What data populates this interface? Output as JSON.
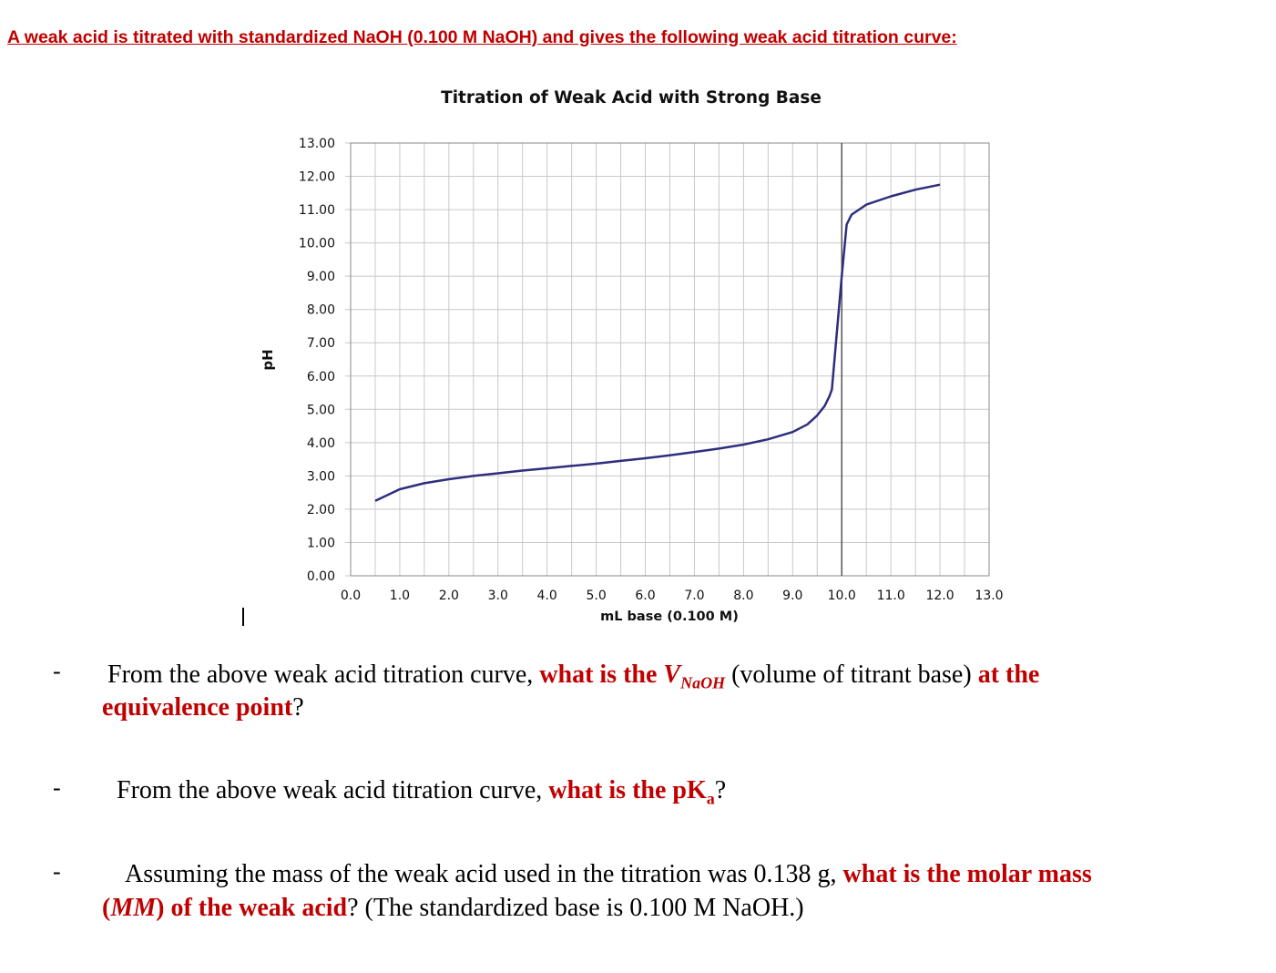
{
  "heading": "A weak acid is titrated with standardized NaOH (0.100 M NaOH) and gives the following weak acid titration curve:",
  "colors": {
    "curve": "#2e2e7e",
    "grid": "#c8c8c8",
    "heading": "#c00000",
    "emphasis": "#c00000"
  },
  "chart_data": {
    "type": "line",
    "title": "Titration of Weak Acid with Strong Base",
    "xlabel": "mL base (0.100 M)",
    "ylabel": "pH",
    "xlim": [
      0,
      13
    ],
    "ylim": [
      0,
      13
    ],
    "x_ticks": [
      "0.0",
      "1.0",
      "2.0",
      "3.0",
      "4.0",
      "5.0",
      "6.0",
      "7.0",
      "8.0",
      "9.0",
      "10.0",
      "11.0",
      "12.0",
      "13.0"
    ],
    "y_ticks": [
      "0.00",
      "1.00",
      "2.00",
      "3.00",
      "4.00",
      "5.00",
      "6.00",
      "7.00",
      "8.00",
      "9.00",
      "10.00",
      "11.00",
      "12.00",
      "13.00"
    ],
    "grid": true,
    "minor_x_grid_step": 0.5,
    "vertical_marker_x": 10.0,
    "series": [
      {
        "x": [
          0.5,
          1.0,
          1.5,
          2.0,
          2.5,
          3.0,
          3.5,
          4.0,
          4.5,
          5.0,
          5.5,
          6.0,
          6.5,
          7.0,
          7.5,
          8.0,
          8.5,
          9.0,
          9.3,
          9.5,
          9.65,
          9.75,
          9.8,
          10.0,
          10.1,
          10.2,
          10.5,
          11.0,
          11.5,
          12.0
        ],
        "y": [
          2.25,
          2.6,
          2.78,
          2.9,
          3.0,
          3.08,
          3.16,
          3.23,
          3.3,
          3.37,
          3.45,
          3.53,
          3.62,
          3.72,
          3.82,
          3.94,
          4.1,
          4.32,
          4.55,
          4.82,
          5.1,
          5.4,
          5.6,
          9.0,
          10.55,
          10.85,
          11.15,
          11.4,
          11.6,
          11.75
        ]
      }
    ]
  },
  "questions": [
    {
      "dash": "-",
      "p1": "From the above weak acid titration curve, ",
      "b1": "what is the ",
      "v": "V",
      "vsub": "NaOH",
      "p2": " (volume of titrant base) ",
      "b2": "at the",
      "b3": "equivalence point",
      "p3": "?"
    },
    {
      "dash": "-",
      "p1": "From the above weak acid titration curve, ",
      "b1": "what is the pK",
      "sub": "a",
      "p2": "?"
    },
    {
      "dash": "-",
      "p1": "Assuming the mass of the weak acid used in the titration was 0.138 g, ",
      "b1": "what is the molar mass",
      "b2": "(",
      "b3": "MM",
      "b4": ") of the weak acid",
      "p2": "? (The standardized base is 0.100 M NaOH.)"
    }
  ]
}
